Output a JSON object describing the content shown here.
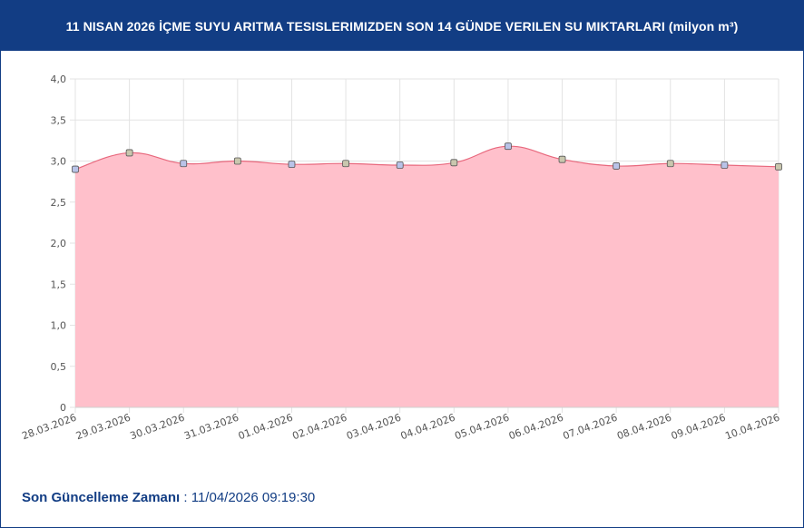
{
  "header": {
    "title": "11 NISAN 2026 İÇME SUYU ARITMA TESISLERIMIZDEN SON 14 GÜNDE VERILEN SU MIKTARLARI (milyon m³)"
  },
  "footer": {
    "label": "Son Güncelleme Zamanı",
    "separator": " : ",
    "value": "11/04/2026 09:19:30"
  },
  "colors": {
    "header_bg": "#123d84",
    "area_fill": "#ffc0cb",
    "line": "#e8687d",
    "grid": "#e3e3e3",
    "text": "#333333"
  },
  "chart_data": {
    "type": "area",
    "title": "",
    "xlabel": "",
    "ylabel": "",
    "categories": [
      "28.03.2026",
      "29.03.2026",
      "30.03.2026",
      "31.03.2026",
      "01.04.2026",
      "02.04.2026",
      "03.04.2026",
      "04.04.2026",
      "05.04.2026",
      "06.04.2026",
      "07.04.2026",
      "08.04.2026",
      "09.04.2026",
      "10.04.2026"
    ],
    "values": [
      2.9,
      3.1,
      2.97,
      3.0,
      2.96,
      2.97,
      2.95,
      2.98,
      3.18,
      3.02,
      2.94,
      2.97,
      2.95,
      2.93
    ],
    "ylim": [
      0,
      4
    ],
    "yticks": [
      0,
      0.5,
      1,
      1.5,
      2,
      2.5,
      3,
      3.5,
      4
    ],
    "ytick_labels": [
      "0",
      "0,5",
      "1,0",
      "1,5",
      "2,0",
      "2,5",
      "3,0",
      "3,5",
      "4,0"
    ],
    "grid": true,
    "legend": "none"
  }
}
